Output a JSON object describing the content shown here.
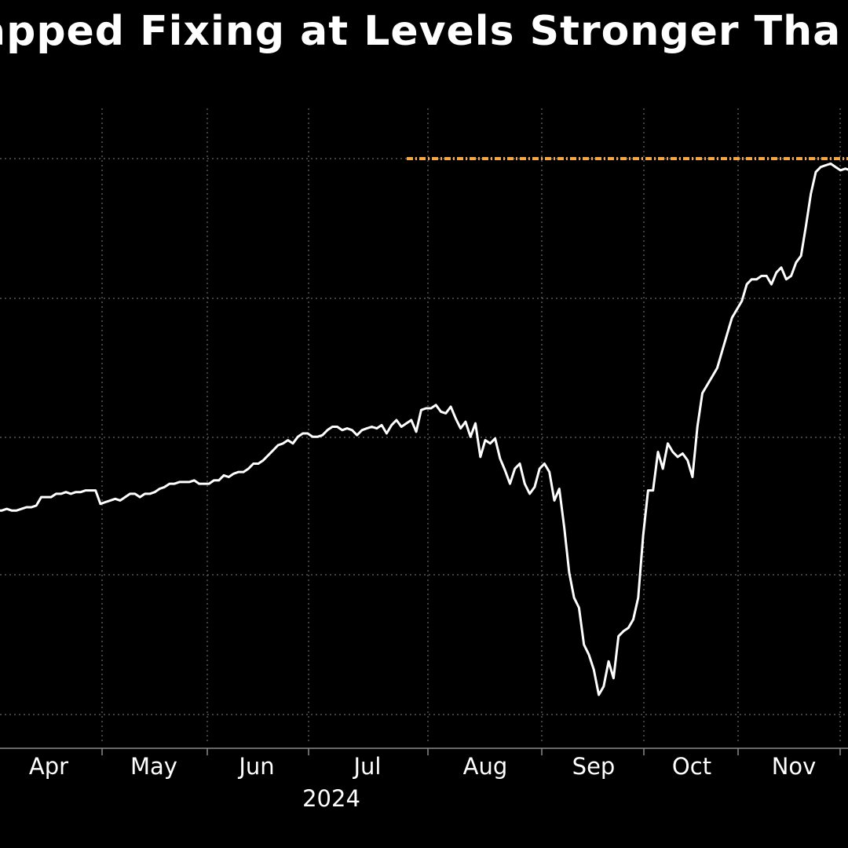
{
  "chart_data": {
    "type": "line",
    "title": "apped Fixing at Levels Stronger Tha",
    "xlabel": "",
    "ylabel": "",
    "year_label": "2024",
    "x_tick_labels": [
      "Apr",
      "May",
      "Jun",
      "Jul",
      "Aug",
      "Sep",
      "Oct",
      "Nov"
    ],
    "grid": true,
    "colors": {
      "background": "#000000",
      "series": "#ffffff",
      "reference_line": "#f5a742",
      "grid": "#808080"
    },
    "series": [
      {
        "values": [
          5.1,
          5.1,
          5.11,
          5.1,
          5.1,
          5.11,
          5.12,
          5.12,
          5.13,
          5.18,
          5.18,
          5.18,
          5.2,
          5.2,
          5.21,
          5.2,
          5.21,
          5.21,
          5.22,
          5.22,
          5.22,
          5.14,
          5.15,
          5.16,
          5.17,
          5.16,
          5.18,
          5.2,
          5.2,
          5.18,
          5.2,
          5.2,
          5.21,
          5.23,
          5.24,
          5.26,
          5.26,
          5.27,
          5.27,
          5.27,
          5.28,
          5.26,
          5.26,
          5.26,
          5.28,
          5.28,
          5.31,
          5.3,
          5.32,
          5.33,
          5.33,
          5.35,
          5.38,
          5.38,
          5.4,
          5.43,
          5.46,
          5.49,
          5.5,
          5.52,
          5.5,
          5.54,
          5.56,
          5.56,
          5.54,
          5.54,
          5.55,
          5.58,
          5.6,
          5.6,
          5.58,
          5.59,
          5.58,
          5.55,
          5.58,
          5.59,
          5.6,
          5.59,
          5.61,
          5.56,
          5.61,
          5.64,
          5.6,
          5.62,
          5.64,
          5.57,
          5.7,
          5.71,
          5.71,
          5.73,
          5.69,
          5.68,
          5.72,
          5.65,
          5.59,
          5.63,
          5.54,
          5.62,
          5.42,
          5.52,
          5.5,
          5.53,
          5.41,
          5.34,
          5.26,
          5.35,
          5.38,
          5.26,
          5.2,
          5.24,
          5.35,
          5.38,
          5.33,
          5.16,
          5.23,
          5.0,
          4.73,
          4.58,
          4.52,
          4.3,
          4.24,
          4.15,
          4.0,
          4.05,
          4.2,
          4.1,
          4.35,
          4.38,
          4.4,
          4.45,
          4.58,
          4.95,
          5.22,
          5.22,
          5.45,
          5.35,
          5.5,
          5.45,
          5.42,
          5.44,
          5.4,
          5.3,
          5.6,
          5.8,
          5.85,
          5.9,
          5.95,
          6.05,
          6.15,
          6.25,
          6.3,
          6.35,
          6.45,
          6.48,
          6.48,
          6.5,
          6.5,
          6.45,
          6.52,
          6.55,
          6.48,
          6.5,
          6.58,
          6.62,
          6.8,
          6.99,
          7.12,
          7.15,
          7.16,
          7.17,
          7.15,
          7.13,
          7.14,
          7.13
        ]
      }
    ],
    "reference_line": {
      "value": 7.2,
      "start_index": 91
    }
  }
}
